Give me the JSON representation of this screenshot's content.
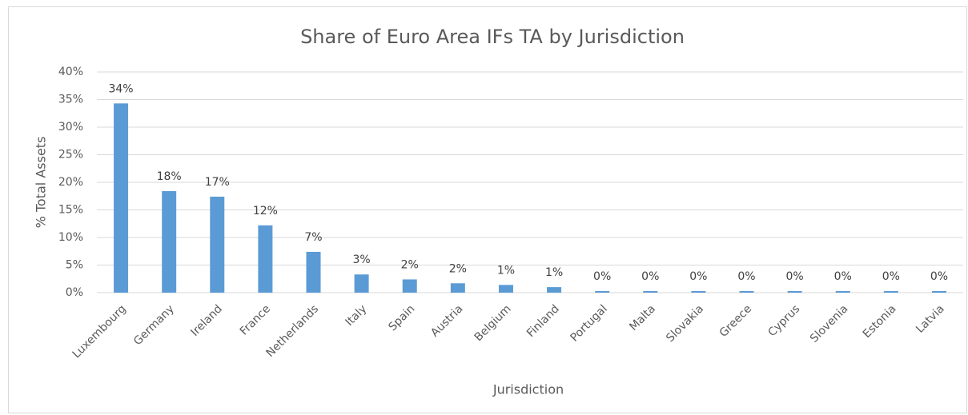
{
  "chart_data": {
    "type": "bar",
    "title": "Share of Euro Area IFs TA by Jurisdiction",
    "x_label": "Jurisdiction",
    "y_label": "% Total Assets",
    "categories": [
      "Luxembourg",
      "Germany",
      "Ireland",
      "France",
      "Netherlands",
      "Italy",
      "Spain",
      "Austria",
      "Belgium",
      "Finland",
      "Portugal",
      "Malta",
      "Slovakia",
      "Greece",
      "Cyprus",
      "Slovenia",
      "Estonia",
      "Latvia"
    ],
    "values": [
      34.3,
      18.4,
      17.4,
      12.2,
      7.4,
      3.3,
      2.4,
      1.7,
      1.4,
      1.0,
      0.3,
      0.3,
      0.3,
      0.3,
      0.3,
      0.3,
      0.3,
      0.3
    ],
    "value_labels": [
      "34%",
      "18%",
      "17%",
      "12%",
      "7%",
      "3%",
      "2%",
      "2%",
      "1%",
      "1%",
      "0%",
      "0%",
      "0%",
      "0%",
      "0%",
      "0%",
      "0%",
      "0%"
    ],
    "color": "#5b9bd5",
    "ylim": [
      0,
      40
    ],
    "yticks": [
      {
        "value": 0,
        "label": "0%"
      },
      {
        "value": 5,
        "label": "5%"
      },
      {
        "value": 10,
        "label": "10%"
      },
      {
        "value": 15,
        "label": "15%"
      },
      {
        "value": 20,
        "label": "20%"
      },
      {
        "value": 25,
        "label": "25%"
      },
      {
        "value": 30,
        "label": "30%"
      },
      {
        "value": 35,
        "label": "35%"
      },
      {
        "value": 40,
        "label": "40%"
      }
    ],
    "grid": true
  }
}
